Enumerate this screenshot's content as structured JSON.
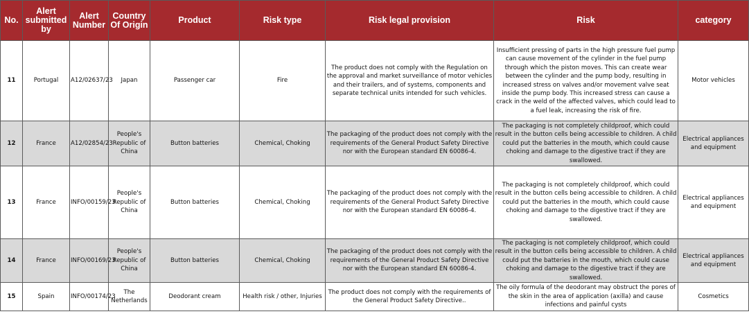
{
  "headers": [
    "No.",
    "Alert submitted by",
    "Alert Number",
    "Country Of Origin",
    "Product",
    "Risk type",
    "Risk legal provision",
    "Risk",
    "category"
  ],
  "rows": [
    {
      "no": "11",
      "submitted_by": "Portugal",
      "alert_number": "A12/02637/23",
      "country": "Japan",
      "product": "Passenger car",
      "risk_type": "Fire",
      "legal_provision": "The product does not comply with the Regulation on the approval and market surveillance of motor vehicles and their trailers, and of systems, components and separate technical units intended for such vehicles.",
      "risk": "Insufficient pressing of parts in the high pressure fuel pump can cause movement of the cylinder in the fuel pump through which the piston moves. This can create wear between the cylinder and the pump body, resulting in increased stress on valves and/or movement valve seat inside the pump body. This increased stress can cause a crack in the weld of the affected valves, which could lead to a fuel leak, increasing the risk of fire.",
      "category": "Motor vehicles"
    },
    {
      "no": "12",
      "submitted_by": "France",
      "alert_number": "A12/02854/23",
      "country": "People's Republic of China",
      "product": "Button batteries",
      "risk_type": "Chemical, Choking",
      "legal_provision": "The packaging of the product does not comply with the requirements of the General Product Safety Directive nor with the European standard EN 60086-4.",
      "risk": "The packaging is not completely childproof, which could result in the button cells being accessible to children. A child could put the batteries in the mouth, which could cause choking and damage to the digestive tract if they are swallowed.",
      "category": "Electrical appliances and equipment"
    },
    {
      "no": "13",
      "submitted_by": "France",
      "alert_number": "INFO/00159/23",
      "country": "People's Republic of China",
      "product": "Button batteries",
      "risk_type": "Chemical, Choking",
      "legal_provision": "The packaging of the product does not comply with the requirements of the General Product Safety Directive nor with the European standard EN 60086-4.",
      "risk": "The packaging is not completely childproof, which could result in the button cells being accessible to children. A child could put the batteries in the mouth, which could cause choking and damage to the digestive tract if they are swallowed.",
      "category": "Electrical appliances and equipment"
    },
    {
      "no": "14",
      "submitted_by": "France",
      "alert_number": "INFO/00169/23",
      "country": "People's Republic of China",
      "product": "Button batteries",
      "risk_type": "Chemical, Choking",
      "legal_provision": "The packaging of the product does not comply with the requirements of the General Product Safety Directive nor with the European standard EN 60086-4.",
      "risk": "The packaging is not completely childproof, which could result in the button cells being accessible to children. A child could put the batteries in the mouth, which could cause choking and damage to the digestive tract if they are swallowed.",
      "category": "Electrical appliances and equipment"
    },
    {
      "no": "15",
      "submitted_by": "Spain",
      "alert_number": "INFO/00174/23",
      "country": "The Netherlands",
      "product": "Deodorant cream",
      "risk_type": "Health risk / other, Injuries",
      "legal_provision": "The product does not comply with the requirements of the General Product Safety Directive..",
      "risk": "The oily formula of the deodorant may obstruct the pores of the skin in the area of application (axilla) and cause infections and painful cysts",
      "category": "Cosmetics"
    }
  ]
}
